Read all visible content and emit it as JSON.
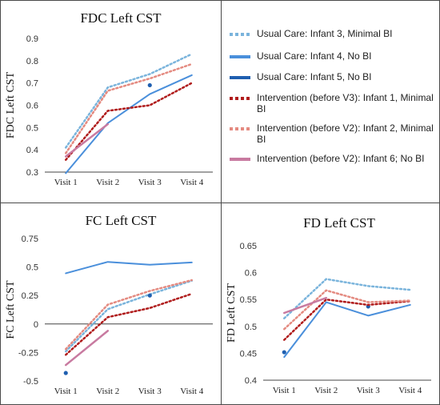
{
  "legend": [
    {
      "label": "Usual Care: Infant 3, Minimal BI",
      "color": "#7ab4dc",
      "style": "dotted"
    },
    {
      "label": "Usual Care: Infant 4, No BI",
      "color": "#4a8fdb",
      "style": "solid"
    },
    {
      "label": "Usual Care: Infant 5, No BI",
      "color": "#1f5fb0",
      "style": "solid"
    },
    {
      "label": "Intervention (before V3): Infant 1, Minimal BI",
      "color": "#b01c1c",
      "style": "dotted"
    },
    {
      "label": "Intervention (before V2): Infant 2, Minimal BI",
      "color": "#e48a80",
      "style": "dotted"
    },
    {
      "label": "Intervention (before V2): Infant 6; No BI",
      "color": "#c87aa0",
      "style": "solid"
    }
  ],
  "chart_data": [
    {
      "type": "line",
      "title": "FDC Left CST",
      "ylabel": "FDC  Left  CST",
      "xlabel": "",
      "categories": [
        "Visit 1",
        "Visit 2",
        "Visit 3",
        "Visit 4"
      ],
      "ylim": [
        0.3,
        0.9
      ],
      "yticks": [
        "0.3",
        "0.4",
        "0.5",
        "0.6",
        "0.7",
        "0.8",
        "0.9"
      ],
      "yticks_values": [
        0.3,
        0.4,
        0.5,
        0.6,
        0.7,
        0.8,
        0.9
      ],
      "grid": false,
      "series": [
        {
          "name": "Usual Care: Infant 3, Minimal BI",
          "values": [
            0.41,
            0.68,
            0.74,
            0.83
          ]
        },
        {
          "name": "Usual Care: Infant 4, No BI",
          "values": [
            0.295,
            0.52,
            0.65,
            0.735
          ]
        },
        {
          "name": "Usual Care: Infant 5, No BI",
          "values": [
            null,
            null,
            0.69,
            null
          ]
        },
        {
          "name": "Intervention (before V3): Infant 1, Minimal BI",
          "values": [
            0.355,
            0.575,
            0.6,
            0.7
          ]
        },
        {
          "name": "Intervention (before V2): Infant 2, Minimal BI",
          "values": [
            0.385,
            0.665,
            0.72,
            0.785
          ]
        },
        {
          "name": "Intervention (before V2): Infant 6; No BI",
          "values": [
            0.37,
            0.515,
            null,
            null
          ]
        }
      ]
    },
    {
      "type": "line",
      "title": "FC Left CST",
      "ylabel": "FC  Left  CST",
      "xlabel": "",
      "categories": [
        "Visit 1",
        "Visit 2",
        "Visit 3",
        "Visit 4"
      ],
      "ylim": [
        -0.5,
        0.75
      ],
      "yticks": [
        "-0.5",
        "-0.25",
        "0",
        "0.25",
        "0.5",
        "0.75"
      ],
      "yticks_values": [
        -0.5,
        -0.25,
        0,
        0.25,
        0.5,
        0.75
      ],
      "grid": false,
      "series": [
        {
          "name": "Usual Care: Infant 3, Minimal BI",
          "values": [
            -0.24,
            0.13,
            0.26,
            0.38
          ]
        },
        {
          "name": "Usual Care: Infant 4, No BI",
          "values": [
            0.445,
            0.545,
            0.52,
            0.54
          ]
        },
        {
          "name": "Usual Care: Infant 5, No BI",
          "values": [
            -0.43,
            null,
            0.25,
            null
          ]
        },
        {
          "name": "Intervention (before V3): Infant 1, Minimal BI",
          "values": [
            -0.27,
            0.06,
            0.14,
            0.265
          ]
        },
        {
          "name": "Intervention (before V2): Infant 2, Minimal BI",
          "values": [
            -0.22,
            0.17,
            0.29,
            0.385
          ]
        },
        {
          "name": "Intervention (before V2): Infant 6; No BI",
          "values": [
            -0.36,
            -0.06,
            null,
            null
          ]
        }
      ]
    },
    {
      "type": "line",
      "title": "FD Left CST",
      "ylabel": "FD  Left  CST",
      "xlabel": "",
      "categories": [
        "Visit 1",
        "Visit 2",
        "Visit 3",
        "Visit 4"
      ],
      "ylim": [
        0.4,
        0.65
      ],
      "yticks": [
        "0.4",
        "0.45",
        "0.5",
        "0.55",
        "0.6",
        "0.65"
      ],
      "yticks_values": [
        0.4,
        0.45,
        0.5,
        0.55,
        0.6,
        0.65
      ],
      "grid": false,
      "series": [
        {
          "name": "Usual Care: Infant 3, Minimal BI",
          "values": [
            0.515,
            0.588,
            0.575,
            0.568
          ]
        },
        {
          "name": "Usual Care: Infant 4, No BI",
          "values": [
            0.443,
            0.545,
            0.52,
            0.54
          ]
        },
        {
          "name": "Usual Care: Infant 5, No BI",
          "values": [
            0.452,
            null,
            0.537,
            null
          ]
        },
        {
          "name": "Intervention (before V3): Infant 1, Minimal BI",
          "values": [
            0.475,
            0.55,
            0.54,
            0.547
          ]
        },
        {
          "name": "Intervention (before V2): Infant 2, Minimal BI",
          "values": [
            0.495,
            0.567,
            0.545,
            0.548
          ]
        },
        {
          "name": "Intervention (before V2): Infant 6; No BI",
          "values": [
            0.525,
            0.553,
            null,
            null
          ]
        }
      ]
    }
  ]
}
